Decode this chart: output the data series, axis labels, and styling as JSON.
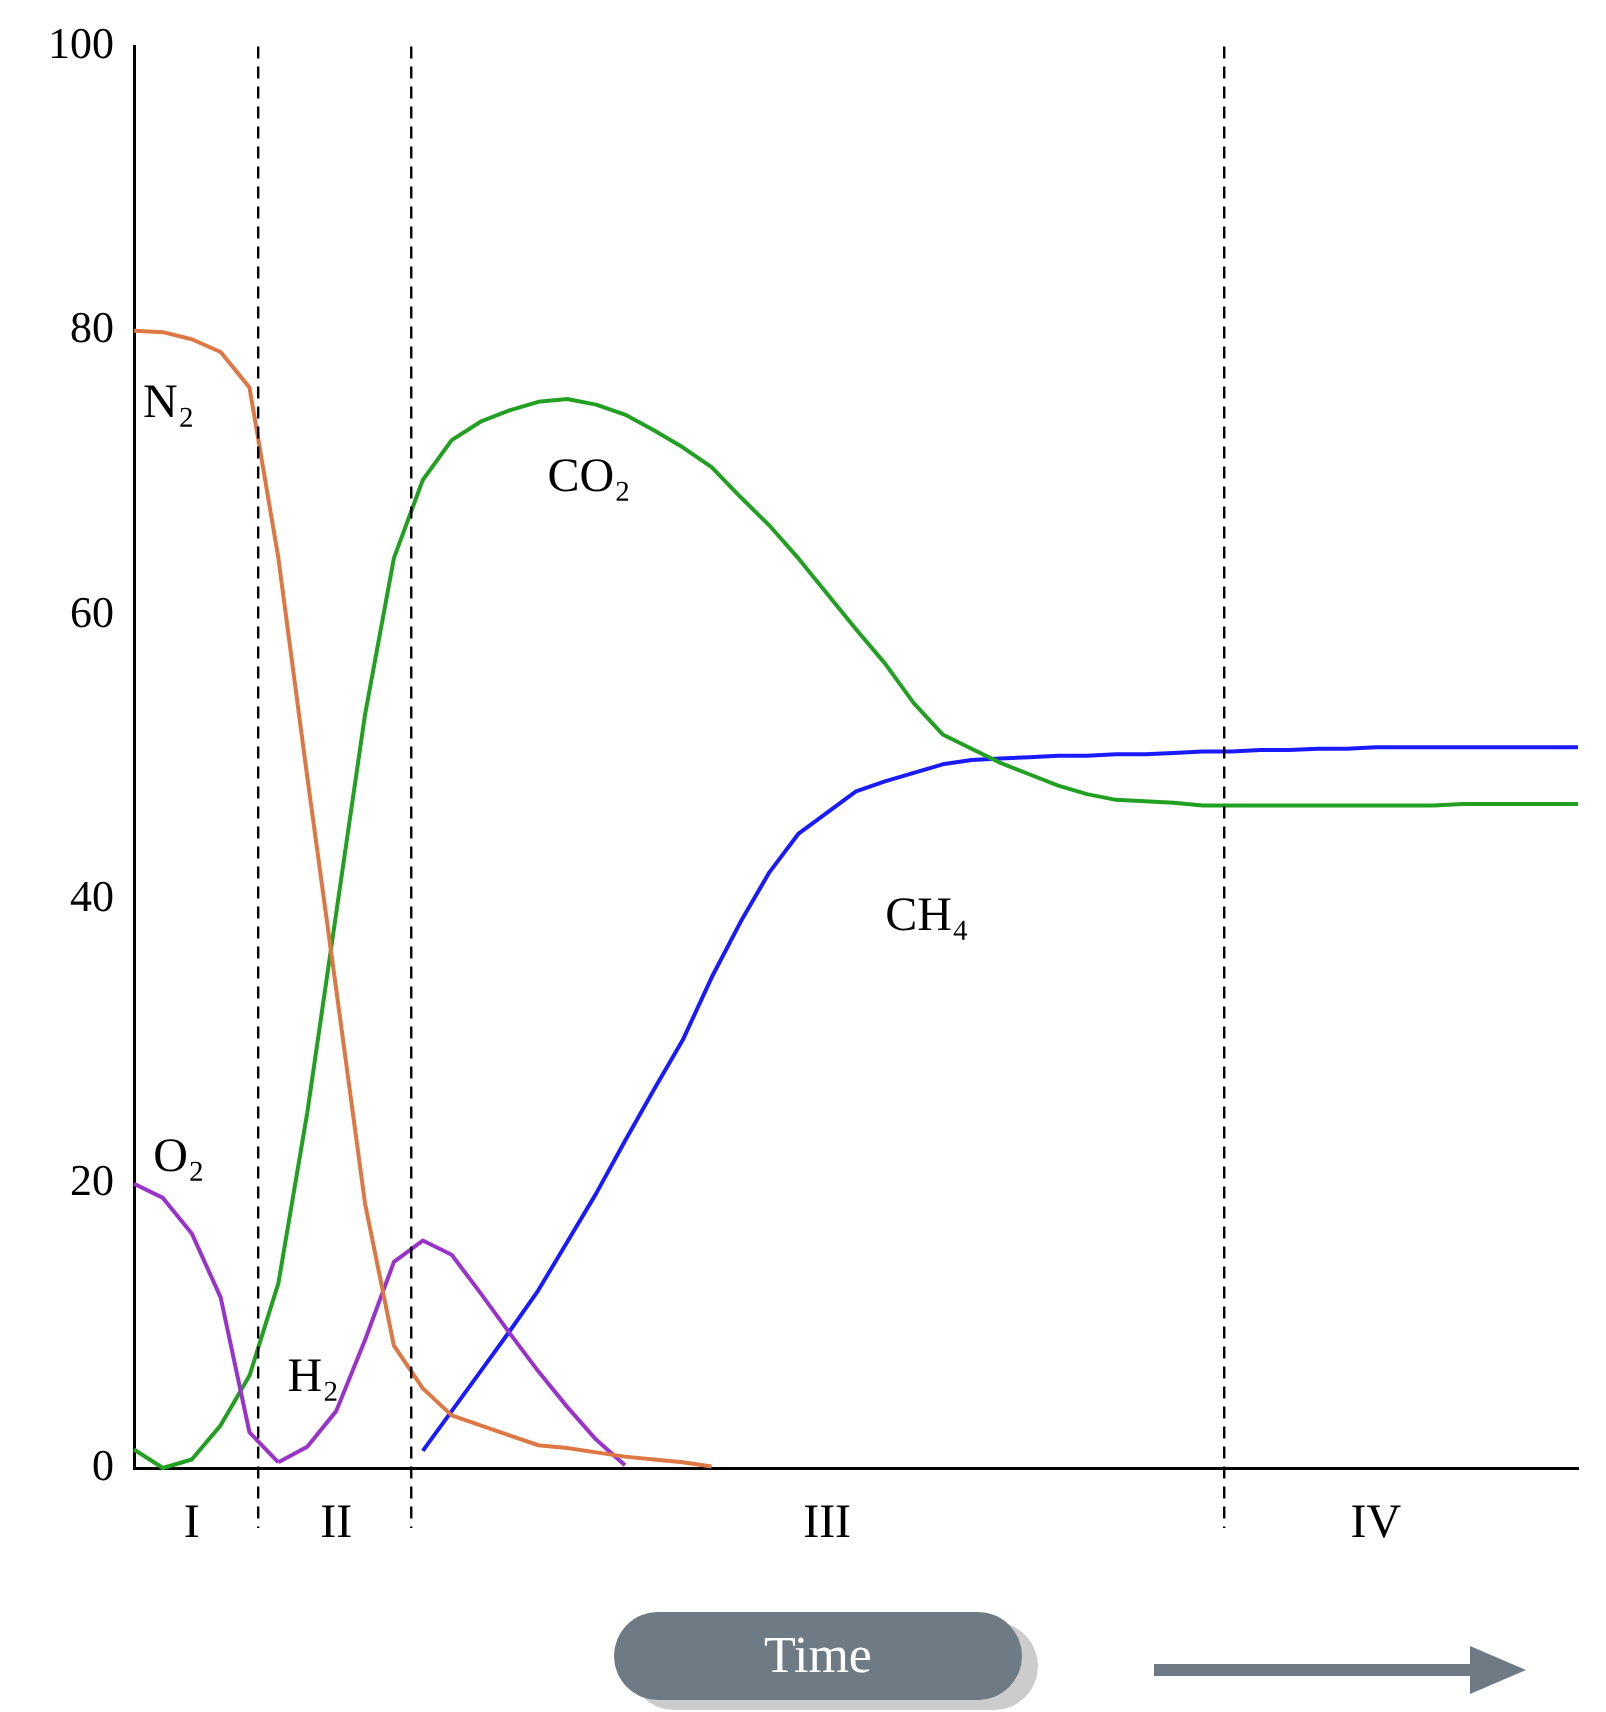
{
  "chart_data": {
    "type": "line",
    "xlabel": "Time",
    "categories": [
      null,
      null,
      "I",
      null,
      null,
      null,
      null,
      "II",
      null,
      null,
      null,
      null,
      null,
      null,
      null,
      null,
      null,
      null,
      null,
      null,
      null,
      null,
      null,
      null,
      "III",
      null,
      null,
      null,
      null,
      null,
      null,
      null,
      null,
      null,
      null,
      null,
      null,
      null,
      null,
      null,
      null,
      null,
      null,
      "IV",
      null,
      null,
      null,
      null,
      null,
      null,
      null
    ],
    "ylim": [
      0,
      100
    ],
    "yticks": [
      0,
      20,
      40,
      60,
      80,
      100
    ],
    "grid": false,
    "legend": false,
    "marker": "none",
    "line_style": "solid",
    "series": [
      {
        "name": "N₂",
        "color": "#dd7744",
        "values": [
          80,
          79.9,
          79.4,
          78.5,
          76,
          64,
          48.6,
          33.7,
          18.6,
          8.6,
          5.6,
          3.7,
          3.0,
          2.3,
          1.6,
          1.4,
          1.1,
          0.8,
          0.6,
          0.4,
          0.1,
          null,
          null,
          null,
          null,
          null,
          null,
          null,
          null,
          null,
          null,
          null,
          null,
          null,
          null,
          null,
          null,
          null,
          null,
          null,
          null,
          null,
          null,
          null,
          null,
          null,
          null,
          null,
          null,
          null,
          null
        ]
      },
      {
        "name": "O₂",
        "color": "#9933cc",
        "values": [
          20,
          19,
          16.5,
          12,
          2.5,
          0.4,
          null,
          null,
          null,
          null,
          null,
          null,
          null,
          null,
          null,
          null,
          null,
          null,
          null,
          null,
          null,
          null,
          null,
          null,
          null,
          null,
          null,
          null,
          null,
          null,
          null,
          null,
          null,
          null,
          null,
          null,
          null,
          null,
          null,
          null,
          null,
          null,
          null,
          null,
          null,
          null,
          null,
          null,
          null,
          null,
          null
        ]
      },
      {
        "name": "H₂",
        "color": "#9933cc",
        "values": [
          null,
          null,
          null,
          null,
          null,
          0.4,
          1.5,
          4,
          9,
          14.5,
          16,
          15,
          12.3,
          9.5,
          6.8,
          4.3,
          2,
          0.2,
          null,
          null,
          null,
          null,
          null,
          null,
          null,
          null,
          null,
          null,
          null,
          null,
          null,
          null,
          null,
          null,
          null,
          null,
          null,
          null,
          null,
          null,
          null,
          null,
          null,
          null,
          null,
          null,
          null,
          null,
          null,
          null,
          null
        ]
      },
      {
        "name": "CO₂",
        "color": "#22a022",
        "values": [
          1.3,
          0,
          0.6,
          3,
          6.5,
          13,
          25,
          39,
          53,
          64,
          69.5,
          72.3,
          73.6,
          74.4,
          75,
          75.2,
          74.8,
          74.1,
          73,
          71.8,
          70.4,
          68.3,
          66.3,
          64,
          61.5,
          59,
          56.6,
          53.8,
          51.6,
          50.6,
          49.6,
          48.8,
          48,
          47.4,
          47,
          46.9,
          46.8,
          46.6,
          46.6,
          46.6,
          46.6,
          46.6,
          46.6,
          46.6,
          46.6,
          46.6,
          46.7,
          46.7,
          46.7,
          46.7,
          46.7
        ]
      },
      {
        "name": "CH₄",
        "color": "#1a1aff",
        "values": [
          null,
          null,
          null,
          null,
          null,
          null,
          null,
          null,
          null,
          null,
          1.2,
          4,
          6.8,
          9.6,
          12.5,
          15.9,
          19.3,
          23,
          26.6,
          30.1,
          34.5,
          38.4,
          41.9,
          44.6,
          46.1,
          47.6,
          48.3,
          48.9,
          49.5,
          49.8,
          49.9,
          50,
          50.1,
          50.1,
          50.2,
          50.2,
          50.3,
          50.4,
          50.4,
          50.5,
          50.5,
          50.6,
          50.6,
          50.7,
          50.7,
          50.7,
          50.7,
          50.7,
          50.7,
          50.7,
          50.7
        ]
      }
    ]
  }
}
